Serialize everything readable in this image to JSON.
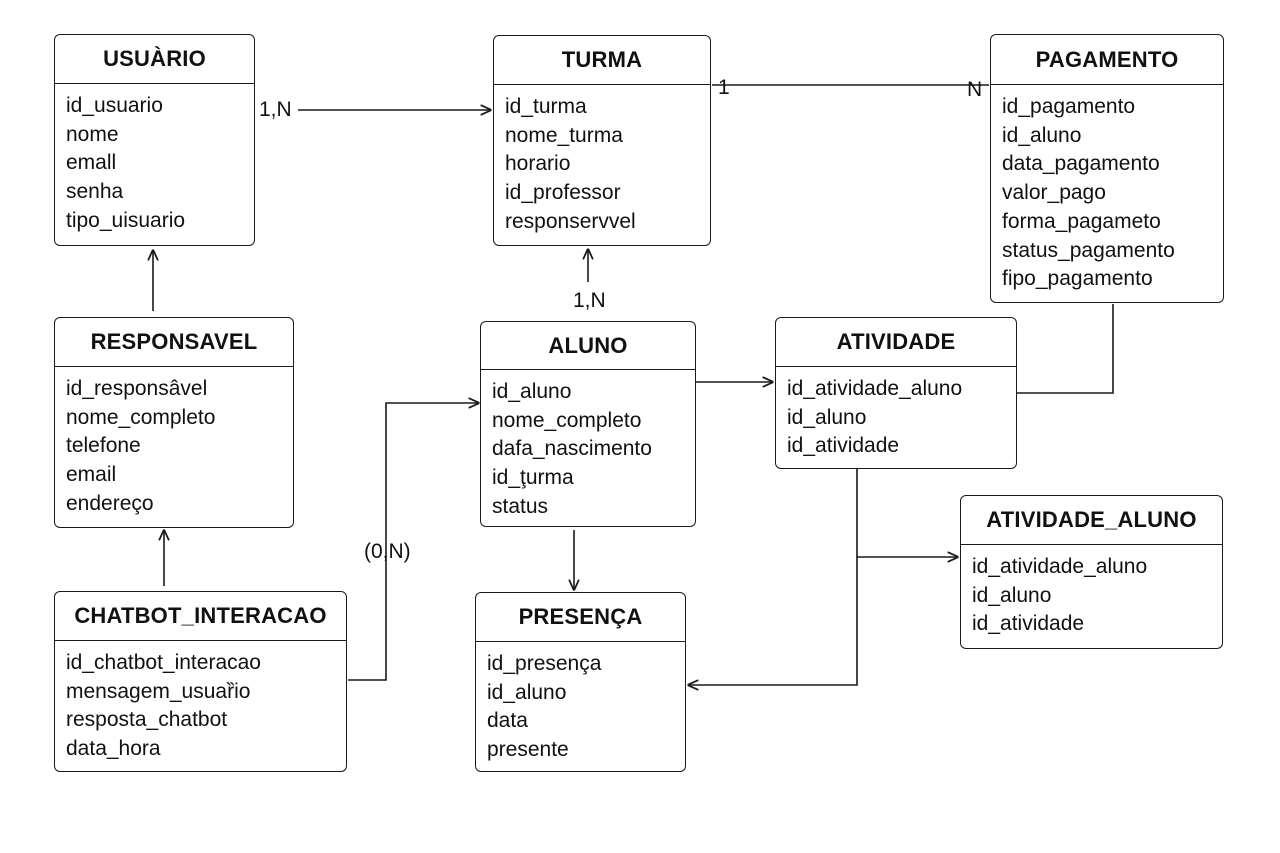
{
  "entities": {
    "usuario": {
      "title": "USUÀRIO",
      "attributes": [
        "id_usuario",
        "nome",
        "emall",
        "senha",
        "tipo_uisuario"
      ]
    },
    "turma": {
      "title": "TURMA",
      "attributes": [
        "id_turma",
        "nome_turma",
        "horario",
        "id_professor",
        "responservvel"
      ]
    },
    "pagamento": {
      "title": "PAGAMENTO",
      "attributes": [
        "id_pagamento",
        "id_aluno",
        "data_pagamento",
        "valor_pago",
        "forma_pagameto",
        "status_pagamento",
        "fipo_pagamento"
      ]
    },
    "responsavel": {
      "title": "RESPONSAVEL",
      "attributes": [
        "id_responsâvel",
        "nome_completo",
        "telefone",
        "email",
        "endereço"
      ]
    },
    "aluno": {
      "title": "ALUNO",
      "attributes": [
        "id_aluno",
        "nome_completo",
        "dafa_nascimento",
        "id_ţurma",
        "status"
      ]
    },
    "atividade": {
      "title": "ATIVIDADE",
      "attributes": [
        "id_atividade_aluno",
        "id_aluno",
        "id_atividade"
      ]
    },
    "atividade_aluno": {
      "title": "ATIVIDADE_ALUNO",
      "attributes": [
        "id_atividade_aluno",
        "id_aluno",
        "id_atividade"
      ]
    },
    "chatbot_interacao": {
      "title": "CHATBOT_INTERACAO",
      "attributes": [
        "id_chatbot_interacao",
        "mensagem_usuaȑio",
        "resposta_chatbot",
        "data_hora"
      ]
    },
    "presenca": {
      "title": "PRESENÇA",
      "attributes": [
        "id_presença",
        "id_aluno",
        "data",
        "presente"
      ]
    }
  },
  "relationships": {
    "usuario_turma": {
      "cardinality": "1,N"
    },
    "turma_pagamento": {
      "cardinality_left": "1",
      "cardinality_right": "N"
    },
    "aluno_turma": {
      "cardinality": "1,N"
    },
    "chatbot_aluno": {
      "cardinality": "(0,N)"
    }
  }
}
